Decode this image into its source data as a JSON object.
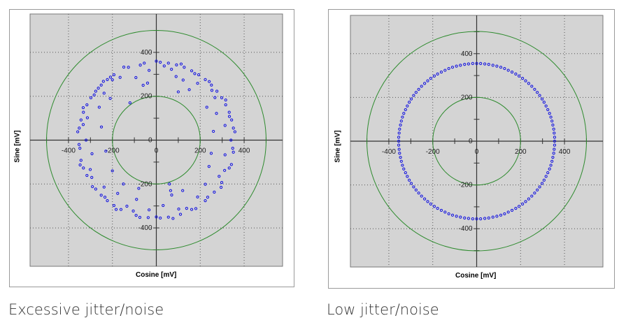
{
  "chart_data": [
    {
      "type": "scatter",
      "xlabel": "Cosine [mV]",
      "ylabel": "Sine [mV]",
      "xlim": [
        -575,
        575
      ],
      "ylim": [
        -575,
        575
      ],
      "x_ticks": [
        -400,
        -200,
        0,
        200,
        400
      ],
      "y_ticks": [
        400,
        200,
        0,
        -200,
        -400
      ],
      "grid": true,
      "reference_circles": [
        500,
        200
      ],
      "colors": {
        "points": "#1010e0",
        "circles": "#2e8b2e",
        "plot_bg": "#d4d4d4",
        "grid": "#555555"
      },
      "caption": "Excessive jitter/noise",
      "points": [
        [
          340,
          0
        ],
        [
          358,
          38
        ],
        [
          313,
          67
        ],
        [
          333,
          108
        ],
        [
          274,
          122
        ],
        [
          316,
          183
        ],
        [
          267,
          194
        ],
        [
          253,
          227
        ],
        [
          241,
          267
        ],
        [
          188,
          259
        ],
        [
          175,
          303
        ],
        [
          122,
          274
        ],
        [
          113,
          347
        ],
        [
          69,
          323
        ],
        [
          36,
          338
        ],
        [
          0,
          360
        ],
        [
          -33,
          318
        ],
        [
          -73,
          342
        ],
        [
          -93,
          285
        ],
        [
          -148,
          333
        ],
        [
          -165,
          286
        ],
        [
          -200,
          275
        ],
        [
          -241,
          268
        ],
        [
          -238,
          214
        ],
        [
          -283,
          206
        ],
        [
          -260,
          150
        ],
        [
          -333,
          148
        ],
        [
          -314,
          102
        ],
        [
          -333,
          71
        ],
        [
          -358,
          38
        ],
        [
          -320,
          0
        ],
        [
          -348,
          -37
        ],
        [
          -293,
          -62
        ],
        [
          -347,
          -113
        ],
        [
          -301,
          -134
        ],
        [
          -294,
          -170
        ],
        [
          -291,
          -212
        ],
        [
          -238,
          -214
        ],
        [
          -234,
          -260
        ],
        [
          -176,
          -243
        ],
        [
          -183,
          -316
        ],
        [
          -134,
          -301
        ],
        [
          -105,
          -323
        ],
        [
          -75,
          -352
        ],
        [
          -33,
          -318
        ],
        [
          0,
          -350
        ],
        [
          31,
          -298
        ],
        [
          76,
          -357
        ],
        [
          102,
          -314
        ],
        [
          138,
          -311
        ],
        [
          180,
          -312
        ],
        [
          188,
          -259
        ],
        [
          234,
          -260
        ],
        [
          223,
          -201
        ],
        [
          295,
          -215
        ],
        [
          286,
          -165
        ],
        [
          311,
          -138
        ],
        [
          342,
          -111
        ],
        [
          313,
          -67
        ],
        [
          348,
          -37
        ],
        [
          351,
          55
        ],
        [
          343,
          92
        ],
        [
          332,
          127
        ],
        [
          316,
          161
        ],
        [
          298,
          193
        ],
        [
          276,
          223
        ],
        [
          251,
          251
        ],
        [
          223,
          276
        ],
        [
          193,
          298
        ],
        [
          161,
          316
        ],
        [
          127,
          332
        ],
        [
          92,
          343
        ],
        [
          55,
          351
        ],
        [
          18,
          355
        ],
        [
          -55,
          351
        ],
        [
          -127,
          332
        ],
        [
          -193,
          298
        ],
        [
          -209,
          287
        ],
        [
          -223,
          276
        ],
        [
          -251,
          251
        ],
        [
          -264,
          237
        ],
        [
          -276,
          223
        ],
        [
          -298,
          193
        ],
        [
          -316,
          161
        ],
        [
          -332,
          127
        ],
        [
          -343,
          92
        ],
        [
          -351,
          55
        ],
        [
          -352,
          -20
        ],
        [
          -343,
          -92
        ],
        [
          -332,
          -127
        ],
        [
          -316,
          -161
        ],
        [
          -276,
          -223
        ],
        [
          -251,
          -251
        ],
        [
          -223,
          -276
        ],
        [
          -193,
          -298
        ],
        [
          -161,
          -316
        ],
        [
          -92,
          -343
        ],
        [
          -37,
          -353
        ],
        [
          18,
          -355
        ],
        [
          55,
          -351
        ],
        [
          110,
          -338
        ],
        [
          161,
          -316
        ],
        [
          223,
          -276
        ],
        [
          264,
          -237
        ],
        [
          298,
          -193
        ],
        [
          332,
          -127
        ],
        [
          351,
          -55
        ],
        [
          -120,
          170
        ],
        [
          -60,
          250
        ],
        [
          150,
          230
        ],
        [
          100,
          220
        ],
        [
          260,
          40
        ],
        [
          250,
          -60
        ],
        [
          -250,
          60
        ],
        [
          -230,
          -50
        ],
        [
          -200,
          -140
        ],
        [
          -80,
          -220
        ],
        [
          60,
          -200
        ],
        [
          65,
          -230
        ],
        [
          70,
          -250
        ],
        [
          120,
          -230
        ],
        [
          -40,
          260
        ],
        [
          230,
          150
        ],
        [
          -150,
          -200
        ],
        [
          240,
          -120
        ],
        [
          -210,
          190
        ],
        [
          90,
          290
        ],
        [
          -90,
          -270
        ]
      ]
    },
    {
      "type": "scatter",
      "xlabel": "Cosine [mV]",
      "ylabel": "Sine [mV]",
      "xlim": [
        -575,
        575
      ],
      "ylim": [
        -575,
        575
      ],
      "x_ticks": [
        -400,
        -200,
        0,
        200,
        400
      ],
      "y_ticks": [
        400,
        200,
        0,
        -200,
        -400
      ],
      "grid": true,
      "reference_circles": [
        500,
        200
      ],
      "colors": {
        "points": "#1010e0",
        "circles": "#2e8b2e",
        "plot_bg": "#d4d4d4",
        "grid": "#555555"
      },
      "caption": "Low jitter/noise",
      "points": [
        [
          355,
          0
        ],
        [
          355,
          18
        ],
        [
          353,
          37
        ],
        [
          351,
          55
        ],
        [
          347,
          74
        ],
        [
          343,
          92
        ],
        [
          338,
          110
        ],
        [
          332,
          127
        ],
        [
          324,
          144
        ],
        [
          316,
          161
        ],
        [
          307,
          178
        ],
        [
          298,
          193
        ],
        [
          287,
          209
        ],
        [
          276,
          223
        ],
        [
          264,
          237
        ],
        [
          251,
          251
        ],
        [
          237,
          264
        ],
        [
          223,
          276
        ],
        [
          209,
          287
        ],
        [
          193,
          298
        ],
        [
          178,
          307
        ],
        [
          161,
          316
        ],
        [
          144,
          324
        ],
        [
          127,
          332
        ],
        [
          110,
          338
        ],
        [
          92,
          343
        ],
        [
          74,
          347
        ],
        [
          55,
          351
        ],
        [
          37,
          353
        ],
        [
          18,
          355
        ],
        [
          0,
          355
        ],
        [
          -18,
          355
        ],
        [
          -37,
          353
        ],
        [
          -55,
          351
        ],
        [
          -74,
          347
        ],
        [
          -92,
          343
        ],
        [
          -110,
          338
        ],
        [
          -127,
          332
        ],
        [
          -144,
          324
        ],
        [
          -161,
          316
        ],
        [
          -178,
          307
        ],
        [
          -193,
          298
        ],
        [
          -209,
          287
        ],
        [
          -223,
          276
        ],
        [
          -237,
          264
        ],
        [
          -251,
          251
        ],
        [
          -264,
          237
        ],
        [
          -276,
          223
        ],
        [
          -287,
          209
        ],
        [
          -298,
          193
        ],
        [
          -307,
          178
        ],
        [
          -316,
          161
        ],
        [
          -324,
          144
        ],
        [
          -332,
          127
        ],
        [
          -338,
          110
        ],
        [
          -343,
          92
        ],
        [
          -347,
          74
        ],
        [
          -351,
          55
        ],
        [
          -353,
          37
        ],
        [
          -355,
          18
        ],
        [
          -355,
          0
        ],
        [
          -355,
          -18
        ],
        [
          -353,
          -37
        ],
        [
          -351,
          -55
        ],
        [
          -347,
          -74
        ],
        [
          -343,
          -92
        ],
        [
          -338,
          -110
        ],
        [
          -332,
          -127
        ],
        [
          -324,
          -144
        ],
        [
          -316,
          -161
        ],
        [
          -307,
          -178
        ],
        [
          -298,
          -193
        ],
        [
          -287,
          -209
        ],
        [
          -276,
          -223
        ],
        [
          -264,
          -237
        ],
        [
          -251,
          -251
        ],
        [
          -237,
          -264
        ],
        [
          -223,
          -276
        ],
        [
          -209,
          -287
        ],
        [
          -193,
          -298
        ],
        [
          -178,
          -307
        ],
        [
          -161,
          -316
        ],
        [
          -144,
          -324
        ],
        [
          -127,
          -332
        ],
        [
          -110,
          -338
        ],
        [
          -92,
          -343
        ],
        [
          -74,
          -347
        ],
        [
          -55,
          -351
        ],
        [
          -37,
          -353
        ],
        [
          -18,
          -355
        ],
        [
          0,
          -355
        ],
        [
          18,
          -355
        ],
        [
          37,
          -353
        ],
        [
          55,
          -351
        ],
        [
          74,
          -347
        ],
        [
          92,
          -343
        ],
        [
          110,
          -338
        ],
        [
          127,
          -332
        ],
        [
          144,
          -324
        ],
        [
          161,
          -316
        ],
        [
          178,
          -307
        ],
        [
          193,
          -298
        ],
        [
          209,
          -287
        ],
        [
          223,
          -276
        ],
        [
          237,
          -264
        ],
        [
          251,
          -251
        ],
        [
          264,
          -237
        ],
        [
          276,
          -223
        ],
        [
          287,
          -209
        ],
        [
          298,
          -193
        ],
        [
          307,
          -178
        ],
        [
          316,
          -161
        ],
        [
          324,
          -144
        ],
        [
          332,
          -127
        ],
        [
          338,
          -110
        ],
        [
          343,
          -92
        ],
        [
          347,
          -74
        ],
        [
          351,
          -55
        ],
        [
          353,
          -37
        ],
        [
          355,
          -18
        ]
      ]
    }
  ]
}
